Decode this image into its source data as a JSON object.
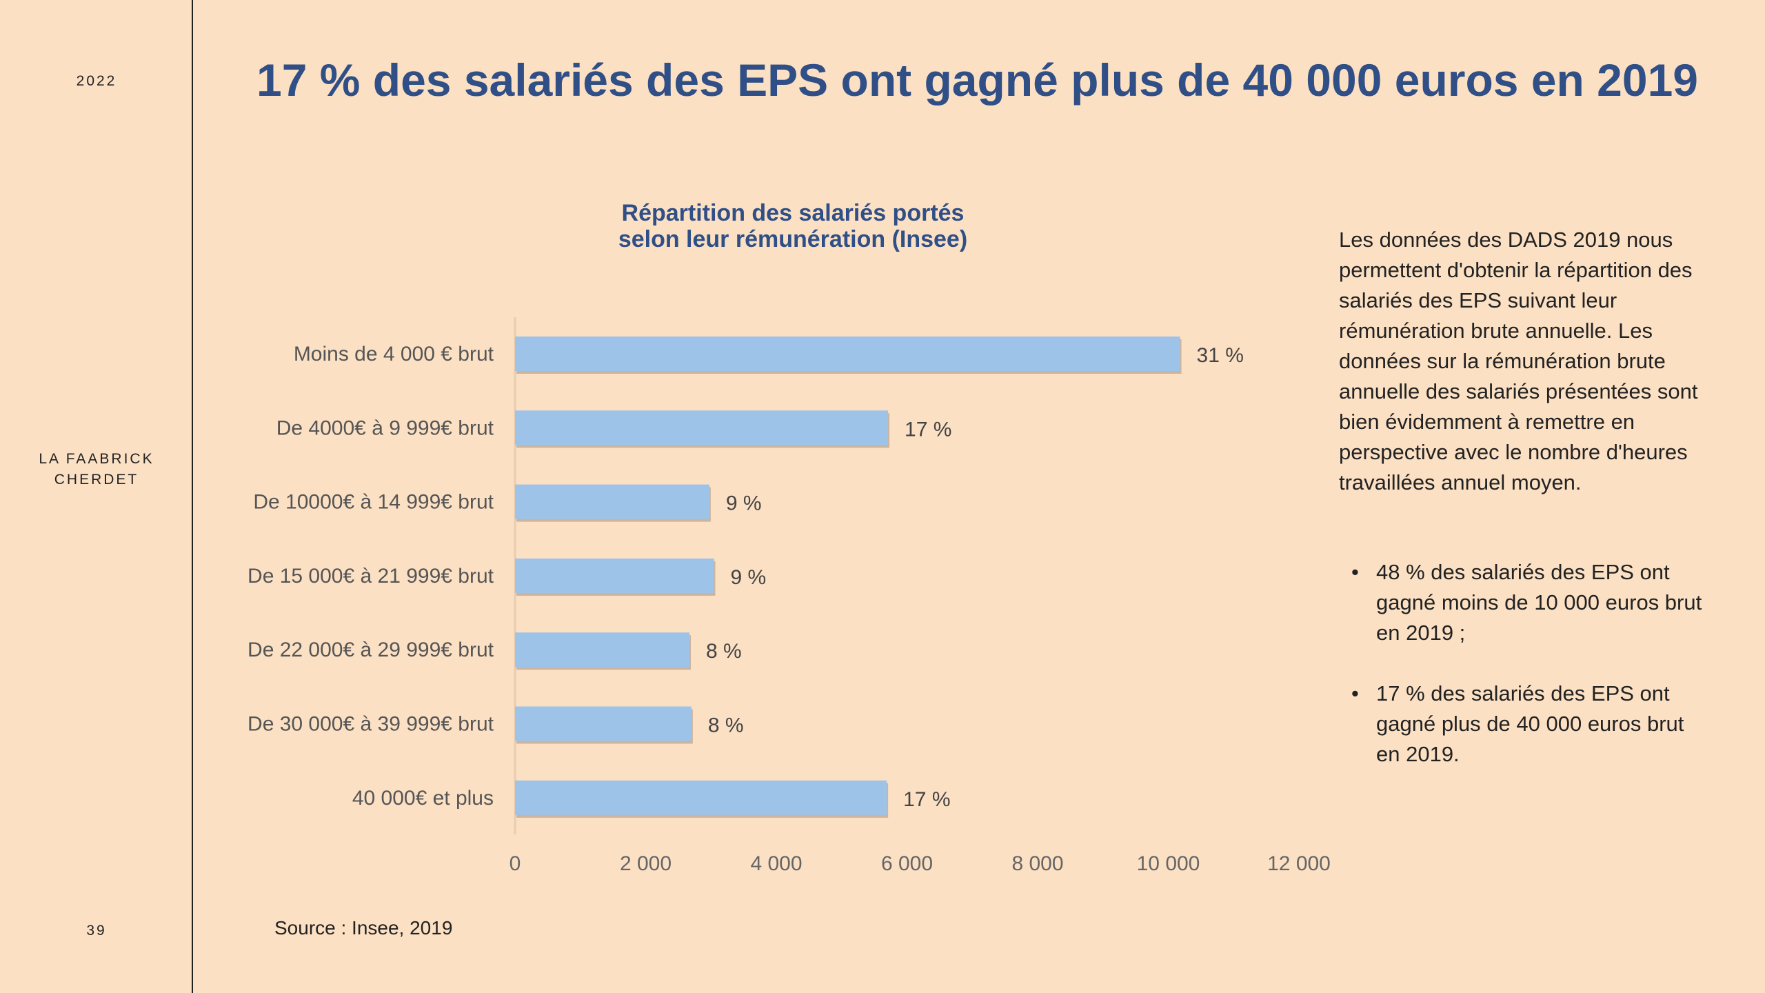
{
  "sidebar": {
    "year": "2022",
    "brand_line1": "LA FAABRICK",
    "brand_line2": "CHERDET",
    "page": "39"
  },
  "title": "17 % des salariés des EPS ont gagné plus de 40 000 euros en 2019",
  "description": "Les données des DADS 2019 nous permettent d'obtenir la répartition des salariés des EPS suivant leur rémunération brute annuelle. Les données sur la rémunération brute annuelle des salariés présentées sont bien évidemment à remettre en perspective avec le nombre d'heures travaillées annuel moyen.",
  "bullets": [
    "48 % des salariés des EPS ont gagné moins de 10 000 euros brut en 2019 ;",
    "17 % des salariés des EPS ont gagné plus de 40 000 euros brut en 2019."
  ],
  "source": "Source : Insee, 2019",
  "chart_data": {
    "type": "bar",
    "orientation": "horizontal",
    "title_line1": "Répartition des salariés portés",
    "title_line2": "selon leur rémunération (Insee)",
    "categories": [
      "Moins de 4 000 € brut",
      "De 4000€ à 9 999€ brut",
      "De 10000€ à 14 999€ brut",
      "De 15 000€ à 21 999€ brut",
      "De 22 000€ à 29 999€ brut",
      "De 30 000€ à 39 999€ brut",
      "40 000€ et plus"
    ],
    "values": [
      10180,
      5710,
      2975,
      3045,
      2670,
      2700,
      5690
    ],
    "data_labels": [
      "31 %",
      "17 %",
      "9 %",
      "9 %",
      "8 %",
      "8 %",
      "17 %"
    ],
    "xlim": [
      0,
      12000
    ],
    "xticks": [
      "0",
      "2 000",
      "4 000",
      "6 000",
      "8 000",
      "10 000",
      "12 000"
    ],
    "bar_color": "#9dc3e9",
    "grid": false
  }
}
